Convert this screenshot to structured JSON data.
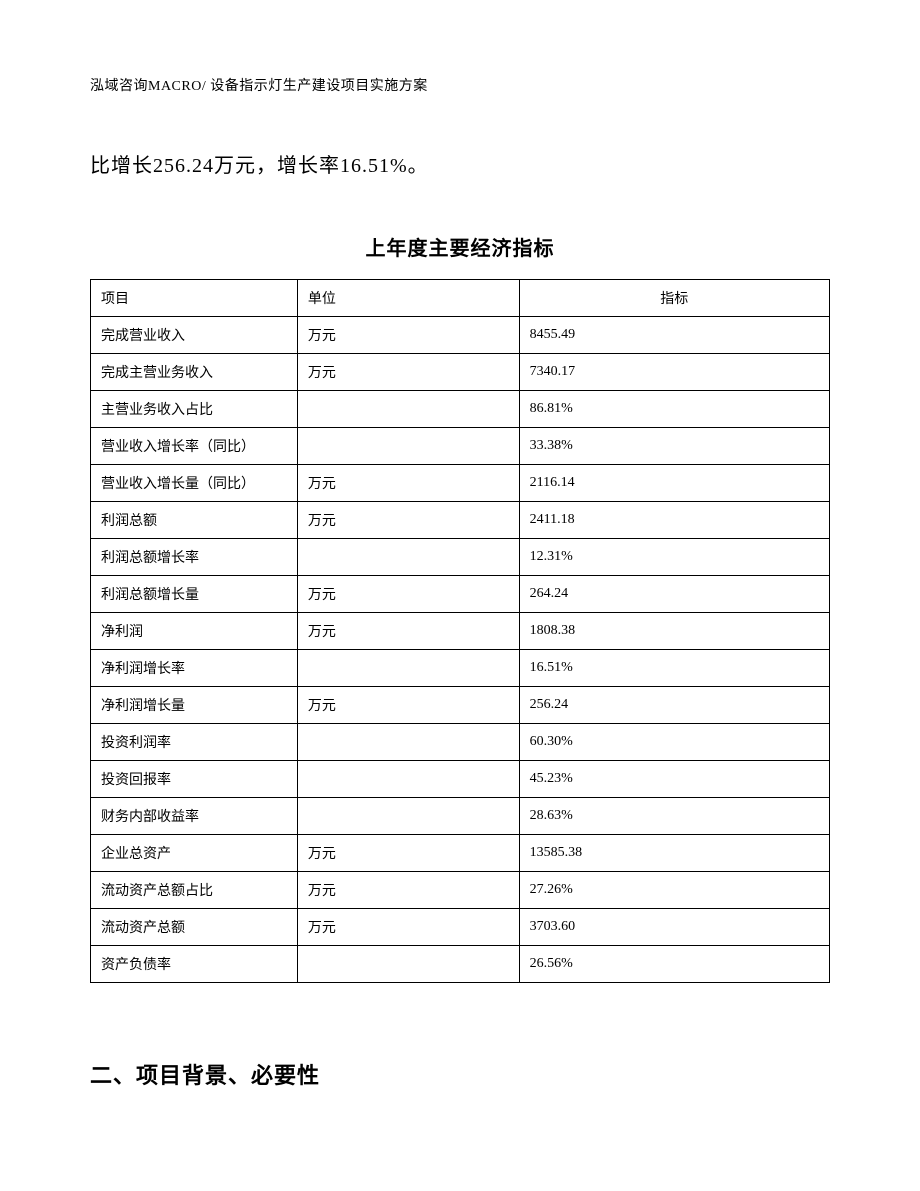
{
  "header": "泓域咨询MACRO/ 设备指示灯生产建设项目实施方案",
  "body_line": "比增长256.24万元，增长率16.51%。",
  "table": {
    "title": "上年度主要经济指标",
    "columns": [
      "项目",
      "单位",
      "指标"
    ],
    "rows": [
      [
        "完成营业收入",
        "万元",
        "8455.49"
      ],
      [
        "完成主营业务收入",
        "万元",
        "7340.17"
      ],
      [
        "主营业务收入占比",
        "",
        "86.81%"
      ],
      [
        "营业收入增长率（同比）",
        "",
        "33.38%"
      ],
      [
        "营业收入增长量（同比）",
        "万元",
        "2116.14"
      ],
      [
        "利润总额",
        "万元",
        "2411.18"
      ],
      [
        "利润总额增长率",
        "",
        "12.31%"
      ],
      [
        "利润总额增长量",
        "万元",
        "264.24"
      ],
      [
        "净利润",
        "万元",
        "1808.38"
      ],
      [
        "净利润增长率",
        "",
        "16.51%"
      ],
      [
        "净利润增长量",
        "万元",
        "256.24"
      ],
      [
        "投资利润率",
        "",
        "60.30%"
      ],
      [
        "投资回报率",
        "",
        "45.23%"
      ],
      [
        "财务内部收益率",
        "",
        "28.63%"
      ],
      [
        "企业总资产",
        "万元",
        "13585.38"
      ],
      [
        "流动资产总额占比",
        "万元",
        "27.26%"
      ],
      [
        "流动资产总额",
        "万元",
        "3703.60"
      ],
      [
        "资产负债率",
        "",
        "26.56%"
      ]
    ]
  },
  "section_heading": "二、项目背景、必要性"
}
